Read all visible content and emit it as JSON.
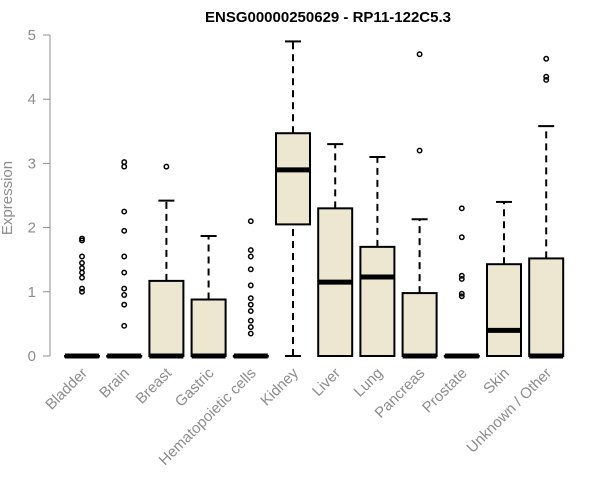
{
  "chart_data": {
    "type": "box",
    "title": "ENSG00000250629 - RP11-122C5.3",
    "ylabel": "Expression",
    "xlabel": "",
    "ylim": [
      0,
      5
    ],
    "yticks": [
      0,
      1,
      2,
      3,
      4,
      5
    ],
    "box_fill": "#ede6d0",
    "categories": [
      "Bladder",
      "Brain",
      "Breast",
      "Gastric",
      "Hematopoietic cells",
      "Kidney",
      "Liver",
      "Lung",
      "Pancreas",
      "Prostate",
      "Skin",
      "Unknown / Other"
    ],
    "boxes": [
      {
        "label": "Bladder",
        "whisker_low": 0,
        "q1": 0,
        "median": 0,
        "q3": 0,
        "whisker_high": 0,
        "outliers": [
          1.0,
          1.05,
          1.22,
          1.3,
          1.37,
          1.45,
          1.55,
          1.8,
          1.83
        ]
      },
      {
        "label": "Brain",
        "whisker_low": 0,
        "q1": 0,
        "median": 0,
        "q3": 0,
        "whisker_high": 0,
        "outliers": [
          0.47,
          0.8,
          0.95,
          1.05,
          1.3,
          1.55,
          1.95,
          2.25,
          2.95,
          3.02
        ]
      },
      {
        "label": "Breast",
        "whisker_low": 0,
        "q1": 0,
        "median": 0,
        "q3": 1.17,
        "whisker_high": 2.42,
        "outliers": [
          2.95
        ]
      },
      {
        "label": "Gastric",
        "whisker_low": 0,
        "q1": 0,
        "median": 0,
        "q3": 0.88,
        "whisker_high": 1.87,
        "outliers": []
      },
      {
        "label": "Hematopoietic cells",
        "whisker_low": 0,
        "q1": 0,
        "median": 0,
        "q3": 0,
        "whisker_high": 0,
        "outliers": [
          0.35,
          0.45,
          0.55,
          0.7,
          0.8,
          0.9,
          1.1,
          1.35,
          1.55,
          1.65,
          2.1
        ]
      },
      {
        "label": "Kidney",
        "whisker_low": 0,
        "q1": 2.05,
        "median": 2.9,
        "q3": 3.47,
        "whisker_high": 4.9,
        "outliers": []
      },
      {
        "label": "Liver",
        "whisker_low": 0,
        "q1": 0,
        "median": 1.15,
        "q3": 2.3,
        "whisker_high": 3.3,
        "outliers": []
      },
      {
        "label": "Lung",
        "whisker_low": 0,
        "q1": 0,
        "median": 1.23,
        "q3": 1.7,
        "whisker_high": 3.1,
        "outliers": []
      },
      {
        "label": "Pancreas",
        "whisker_low": 0,
        "q1": 0,
        "median": 0,
        "q3": 0.98,
        "whisker_high": 2.13,
        "outliers": [
          3.2,
          4.7
        ]
      },
      {
        "label": "Prostate",
        "whisker_low": 0,
        "q1": 0,
        "median": 0,
        "q3": 0,
        "whisker_high": 0,
        "outliers": [
          0.93,
          0.97,
          1.2,
          1.25,
          1.85,
          2.3
        ]
      },
      {
        "label": "Skin",
        "whisker_low": 0,
        "q1": 0,
        "median": 0.4,
        "q3": 1.43,
        "whisker_high": 2.4,
        "outliers": []
      },
      {
        "label": "Unknown / Other",
        "whisker_low": 0,
        "q1": 0,
        "median": 0,
        "q3": 1.52,
        "whisker_high": 3.58,
        "outliers": [
          4.3,
          4.35,
          4.63
        ]
      }
    ]
  }
}
